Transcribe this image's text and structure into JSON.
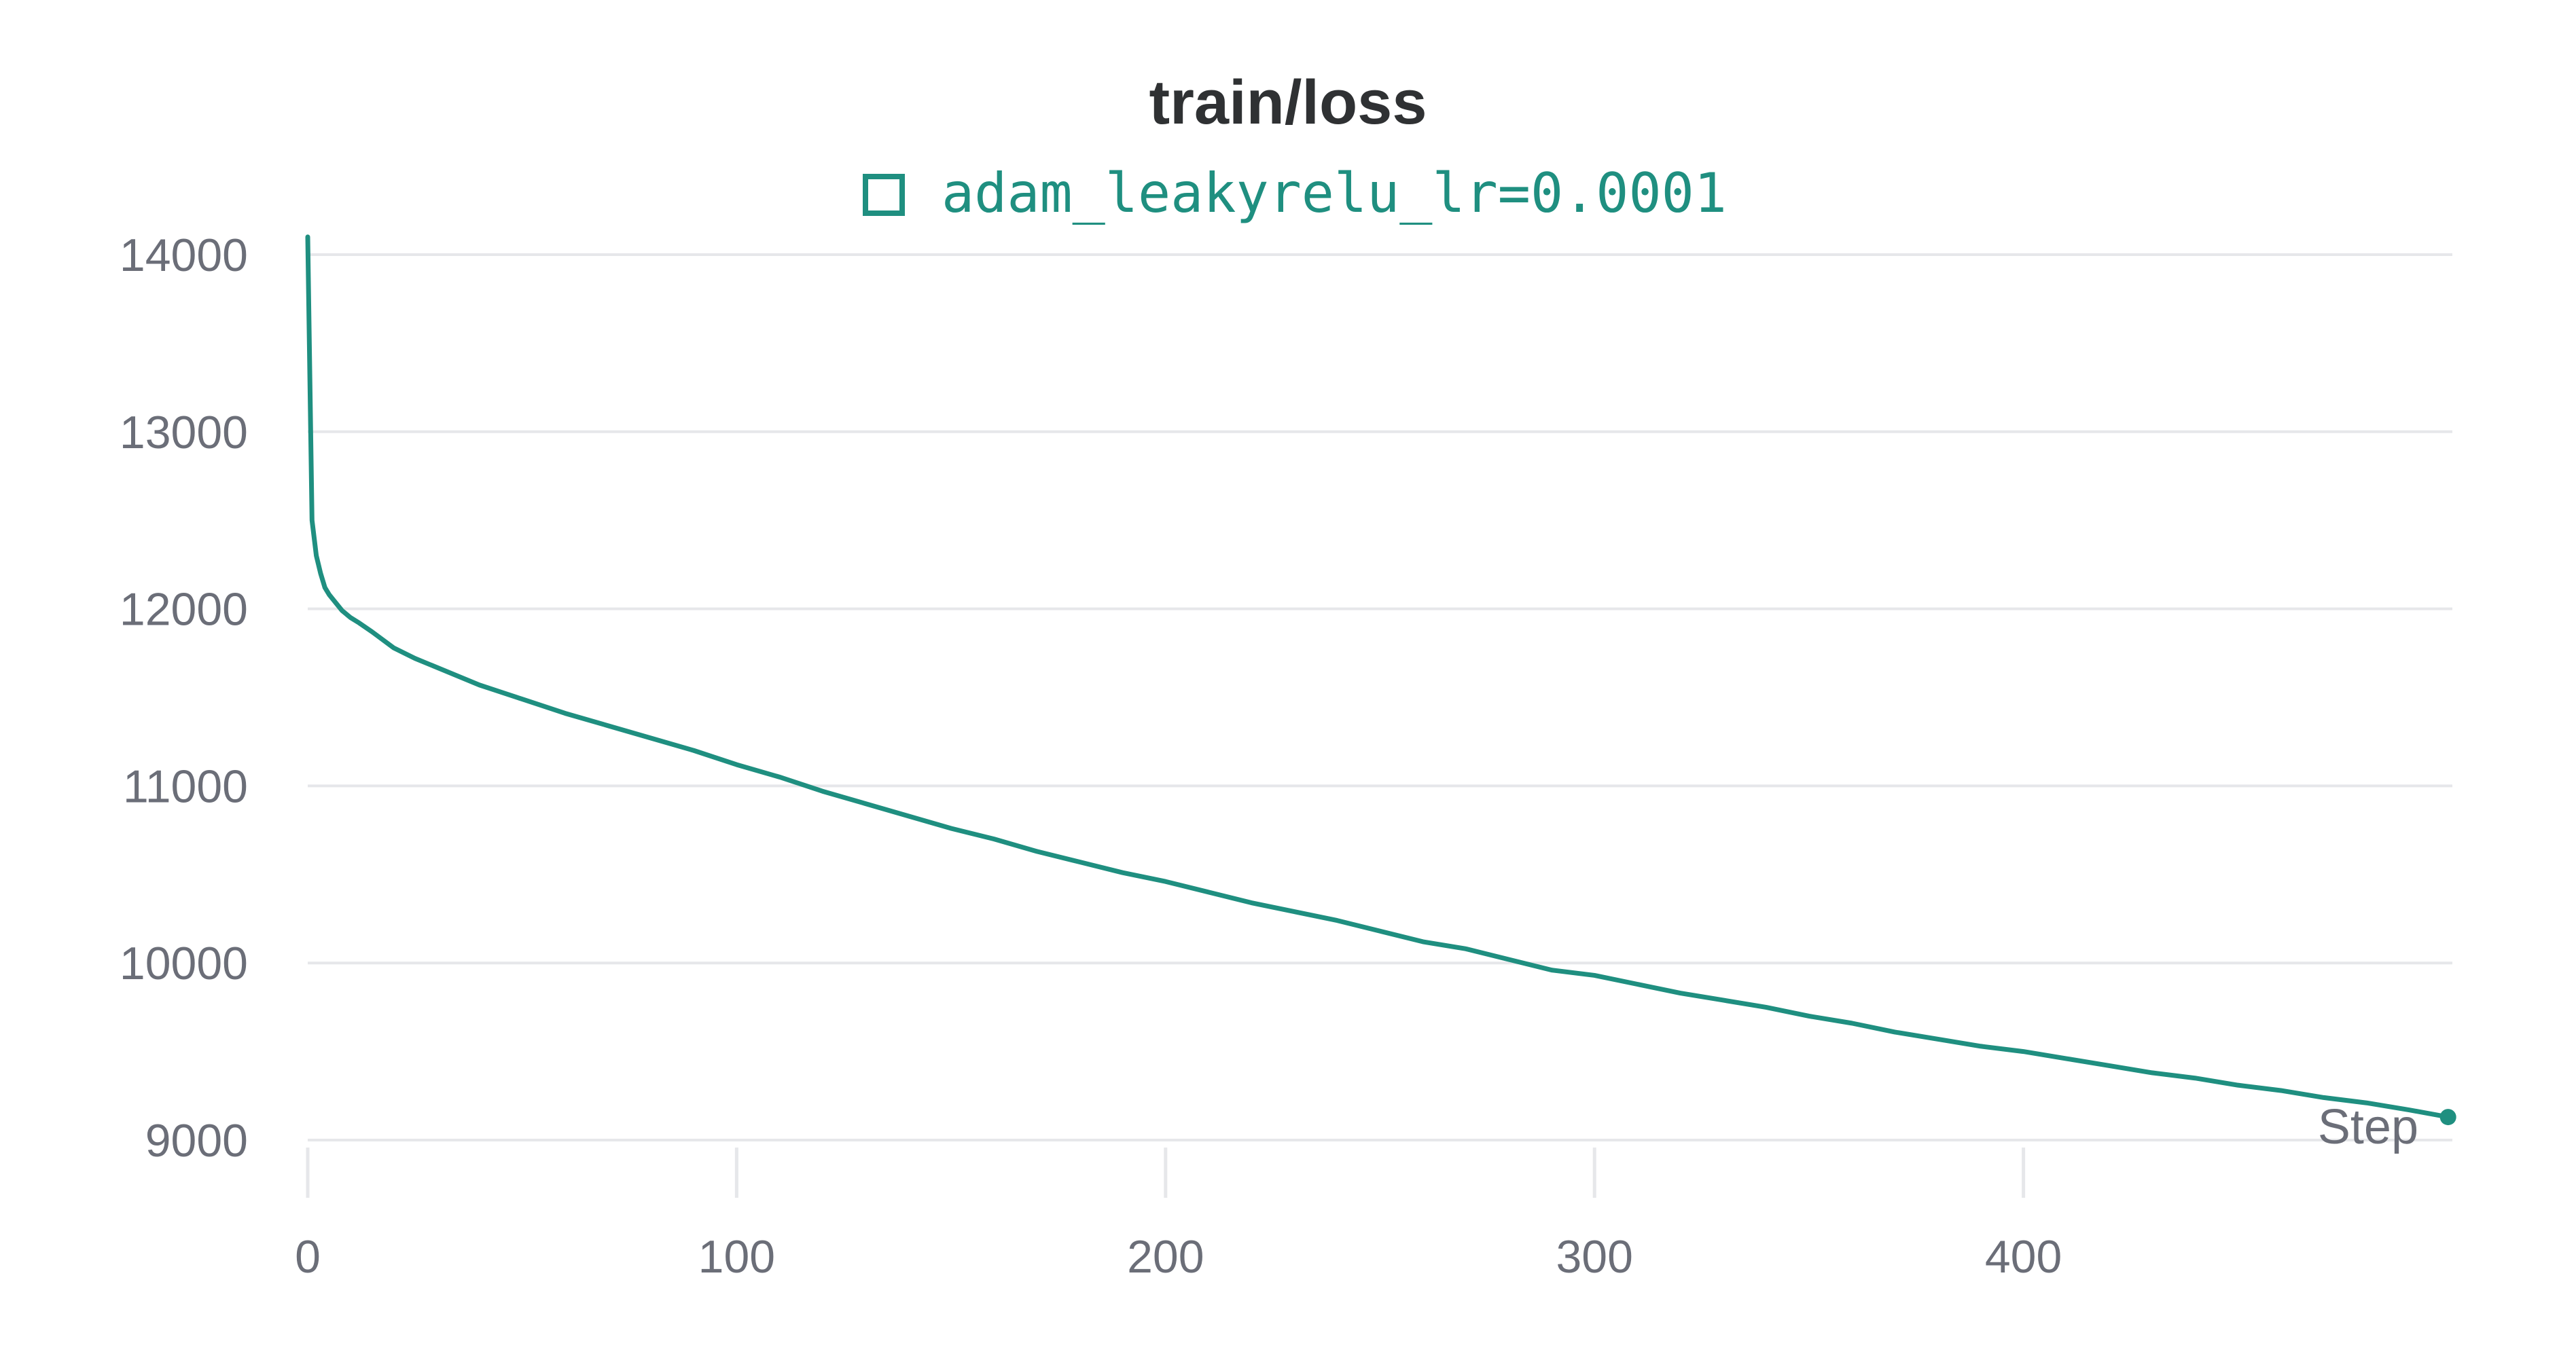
{
  "chart_data": {
    "type": "line",
    "title": "train/loss",
    "xlabel": "Step",
    "ylabel": "",
    "xlim": [
      0,
      500
    ],
    "ylim": [
      9000,
      14000
    ],
    "x_ticks": [
      0,
      100,
      200,
      300,
      400
    ],
    "y_ticks": [
      9000,
      10000,
      11000,
      12000,
      13000,
      14000
    ],
    "grid": "horizontal",
    "legend": "top-center",
    "series": [
      {
        "name": "adam_leakyrelu_lr=0.0001",
        "color": "#1f8f80",
        "x": [
          0,
          1,
          2,
          3,
          4,
          5,
          6,
          8,
          10,
          12,
          15,
          20,
          25,
          30,
          40,
          50,
          60,
          70,
          80,
          90,
          100,
          110,
          120,
          130,
          140,
          150,
          160,
          170,
          180,
          190,
          200,
          210,
          220,
          230,
          240,
          250,
          260,
          270,
          280,
          290,
          300,
          310,
          320,
          330,
          340,
          350,
          360,
          370,
          380,
          390,
          400,
          410,
          420,
          430,
          440,
          450,
          460,
          470,
          480,
          490,
          499
        ],
        "y": [
          14100,
          12500,
          12300,
          12200,
          12120,
          12080,
          12050,
          11990,
          11950,
          11920,
          11870,
          11780,
          11720,
          11670,
          11570,
          11490,
          11410,
          11340,
          11270,
          11200,
          11120,
          11050,
          10970,
          10900,
          10830,
          10760,
          10700,
          10630,
          10570,
          10510,
          10460,
          10400,
          10340,
          10290,
          10240,
          10180,
          10120,
          10080,
          10020,
          9960,
          9930,
          9880,
          9830,
          9790,
          9750,
          9700,
          9660,
          9610,
          9570,
          9530,
          9500,
          9460,
          9420,
          9380,
          9350,
          9310,
          9280,
          9240,
          9210,
          9170,
          9130
        ]
      }
    ]
  }
}
